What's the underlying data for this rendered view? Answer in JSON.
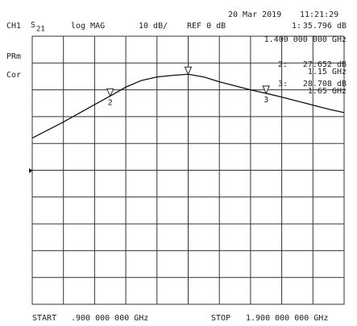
{
  "chart_data": {
    "type": "line",
    "channel": "CH1",
    "parameter": "S",
    "parameter_sub": "21",
    "format": "log MAG",
    "scale": "10 dB/",
    "reference": "REF 0 dB",
    "date": "20 Mar 2019",
    "time": "11:21:29",
    "status": [
      "PRm",
      "Cor"
    ],
    "start_label": "START",
    "start": ".900 000 000 GHz",
    "stop_label": "STOP",
    "stop": "1.900 000 000 GHz",
    "x": [
      0.9,
      1.0,
      1.1,
      1.15,
      1.2,
      1.25,
      1.3,
      1.35,
      1.4,
      1.45,
      1.5,
      1.55,
      1.6,
      1.65,
      1.7,
      1.75,
      1.8,
      1.85,
      1.9
    ],
    "series": [
      {
        "color": "#111111",
        "values": [
          12,
          18,
          24.5,
          27.7,
          31,
          33.5,
          34.8,
          35.4,
          35.8,
          34.8,
          33,
          31.5,
          30,
          28.7,
          27.3,
          25.8,
          24.3,
          22.8,
          21.5
        ]
      }
    ],
    "xlim": [
      0.9,
      1.9
    ],
    "ylim": [
      -50,
      50
    ],
    "xticks": [
      0.9,
      1.0,
      1.1,
      1.2,
      1.3,
      1.4,
      1.5,
      1.6,
      1.7,
      1.8,
      1.9
    ],
    "yticks": [
      -50,
      -40,
      -30,
      -20,
      -10,
      0,
      10,
      20,
      30,
      40,
      50
    ],
    "grid": true,
    "markers": [
      {
        "id": "1:",
        "readout": "35.796 dB",
        "freq": "1.400 000 000 GHz",
        "x": 1.4,
        "value": 35.796
      },
      {
        "id": "2:",
        "tag": "2",
        "readout": "27.652 dB",
        "freq": "1.15 GHz",
        "x": 1.15,
        "value": 27.652
      },
      {
        "id": "3:",
        "tag": "3",
        "readout": "28.708 dB",
        "freq": "1.65 GHz",
        "x": 1.65,
        "value": 28.708
      }
    ]
  }
}
